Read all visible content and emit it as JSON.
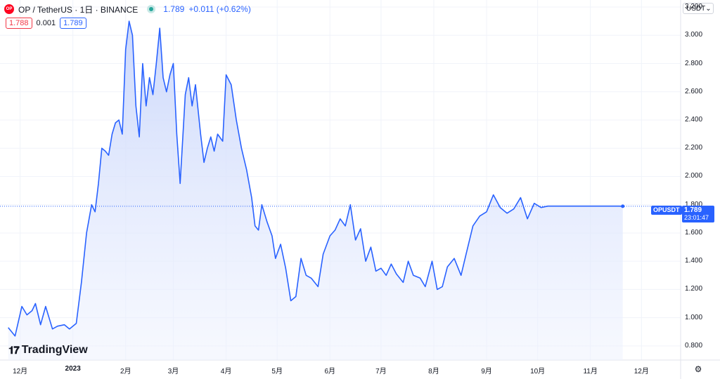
{
  "header": {
    "logo_text": "OP",
    "symbol": "OP / TetherUS · 1日 · BINANCE",
    "price": "1.789",
    "change": "+0.011 (+0.62%)"
  },
  "quote": {
    "bid": "1.788",
    "spread": "0.001",
    "ask": "1.789"
  },
  "currency": "USDT",
  "series_tag": "OPUSDT",
  "last": {
    "price": "1.789",
    "countdown": "23:01:47"
  },
  "brand": "TradingView",
  "colors": {
    "line": "#2962ff",
    "fill_top": "#c9d6fb",
    "grid": "#f0f3fa",
    "bid": "#f23645",
    "live": "#26a69a"
  },
  "chart_data": {
    "type": "area",
    "title": "",
    "xlabel": "",
    "ylabel": "",
    "ylim": [
      0.7,
      3.25
    ],
    "y_ticks": [
      0.8,
      1.0,
      1.2,
      1.4,
      1.6,
      1.8,
      2.0,
      2.2,
      2.4,
      2.6,
      2.8,
      3.0,
      3.2
    ],
    "y_tick_labels": [
      "0.800",
      "1.000",
      "1.200",
      "1.400",
      "1.600",
      "1.800",
      "2.000",
      "2.200",
      "2.400",
      "2.600",
      "2.800",
      "3.000",
      "3.200"
    ],
    "x_ticks": [
      {
        "label": "12月",
        "date": "2022-12-01",
        "bold": false
      },
      {
        "label": "2023",
        "date": "2023-01-01",
        "bold": true
      },
      {
        "label": "2月",
        "date": "2023-02-01",
        "bold": false
      },
      {
        "label": "3月",
        "date": "2023-03-01",
        "bold": false
      },
      {
        "label": "4月",
        "date": "2023-04-01",
        "bold": false
      },
      {
        "label": "5月",
        "date": "2023-05-01",
        "bold": false
      },
      {
        "label": "6月",
        "date": "2023-06-01",
        "bold": false
      },
      {
        "label": "7月",
        "date": "2023-07-01",
        "bold": false
      },
      {
        "label": "8月",
        "date": "2023-08-01",
        "bold": false
      },
      {
        "label": "9月",
        "date": "2023-09-01",
        "bold": false
      },
      {
        "label": "10月",
        "date": "2023-10-01",
        "bold": false
      },
      {
        "label": "11月",
        "date": "2023-11-01",
        "bold": false
      },
      {
        "label": "12月",
        "date": "2023-12-01",
        "bold": false
      }
    ],
    "series": [
      {
        "x": [
          "2022-11-24",
          "2022-11-28",
          "2022-12-02",
          "2022-12-05",
          "2022-12-08",
          "2022-12-10",
          "2022-12-13",
          "2022-12-16",
          "2022-12-20",
          "2022-12-23",
          "2022-12-27",
          "2022-12-30",
          "2023-01-03",
          "2023-01-06",
          "2023-01-09",
          "2023-01-12",
          "2023-01-14",
          "2023-01-16",
          "2023-01-18",
          "2023-01-20",
          "2023-01-22",
          "2023-01-24",
          "2023-01-26",
          "2023-01-28",
          "2023-01-30",
          "2023-02-01",
          "2023-02-03",
          "2023-02-05",
          "2023-02-07",
          "2023-02-09",
          "2023-02-11",
          "2023-02-13",
          "2023-02-15",
          "2023-02-17",
          "2023-02-19",
          "2023-02-21",
          "2023-02-23",
          "2023-02-25",
          "2023-02-27",
          "2023-03-01",
          "2023-03-03",
          "2023-03-05",
          "2023-03-08",
          "2023-03-10",
          "2023-03-12",
          "2023-03-14",
          "2023-03-17",
          "2023-03-19",
          "2023-03-21",
          "2023-03-23",
          "2023-03-25",
          "2023-03-27",
          "2023-03-30",
          "2023-04-01",
          "2023-04-04",
          "2023-04-07",
          "2023-04-10",
          "2023-04-13",
          "2023-04-16",
          "2023-04-18",
          "2023-04-20",
          "2023-04-22",
          "2023-04-25",
          "2023-04-28",
          "2023-04-30",
          "2023-05-03",
          "2023-05-06",
          "2023-05-09",
          "2023-05-12",
          "2023-05-15",
          "2023-05-18",
          "2023-05-21",
          "2023-05-25",
          "2023-05-28",
          "2023-06-01",
          "2023-06-04",
          "2023-06-07",
          "2023-06-10",
          "2023-06-13",
          "2023-06-16",
          "2023-06-19",
          "2023-06-22",
          "2023-06-25",
          "2023-06-28",
          "2023-07-01",
          "2023-07-04",
          "2023-07-07",
          "2023-07-10",
          "2023-07-14",
          "2023-07-17",
          "2023-07-20",
          "2023-07-24",
          "2023-07-27",
          "2023-07-31",
          "2023-08-03",
          "2023-08-06",
          "2023-08-09",
          "2023-08-13",
          "2023-08-17",
          "2023-08-20",
          "2023-08-24",
          "2023-08-28",
          "2023-09-01",
          "2023-09-05",
          "2023-09-09",
          "2023-09-13",
          "2023-09-17",
          "2023-09-21",
          "2023-09-25",
          "2023-09-29",
          "2023-10-03",
          "2023-10-07",
          "2023-10-11",
          "2023-10-15",
          "2023-10-19",
          "2023-10-23",
          "2023-10-27",
          "2023-10-31",
          "2023-11-03",
          "2023-11-06",
          "2023-11-09",
          "2023-11-12",
          "2023-11-15",
          "2023-11-18",
          "2023-11-20"
        ],
        "values": [
          0.93,
          0.87,
          1.08,
          1.02,
          1.05,
          1.1,
          0.95,
          1.08,
          0.92,
          0.94,
          0.95,
          0.92,
          0.96,
          1.25,
          1.6,
          1.8,
          1.75,
          1.95,
          2.2,
          2.18,
          2.15,
          2.3,
          2.38,
          2.4,
          2.3,
          2.9,
          3.1,
          3.0,
          2.5,
          2.28,
          2.8,
          2.5,
          2.7,
          2.58,
          2.8,
          3.05,
          2.7,
          2.6,
          2.72,
          2.8,
          2.3,
          1.95,
          2.58,
          2.7,
          2.5,
          2.65,
          2.3,
          2.1,
          2.2,
          2.28,
          2.18,
          2.3,
          2.25,
          2.72,
          2.65,
          2.4,
          2.2,
          2.05,
          1.85,
          1.65,
          1.62,
          1.8,
          1.68,
          1.58,
          1.42,
          1.52,
          1.35,
          1.12,
          1.15,
          1.42,
          1.3,
          1.28,
          1.22,
          1.45,
          1.58,
          1.62,
          1.7,
          1.65,
          1.8,
          1.55,
          1.63,
          1.4,
          1.5,
          1.33,
          1.35,
          1.3,
          1.38,
          1.31,
          1.25,
          1.4,
          1.3,
          1.28,
          1.22,
          1.4,
          1.2,
          1.22,
          1.36,
          1.42,
          1.3,
          1.45,
          1.65,
          1.72,
          1.75,
          1.87,
          1.78,
          1.74,
          1.77,
          1.85,
          1.7,
          1.81,
          1.78,
          1.79,
          1.79,
          1.79,
          1.79,
          1.79,
          1.79,
          1.79,
          1.79,
          1.79,
          1.79,
          1.79,
          1.79,
          1.79,
          1.789
        ]
      }
    ]
  }
}
